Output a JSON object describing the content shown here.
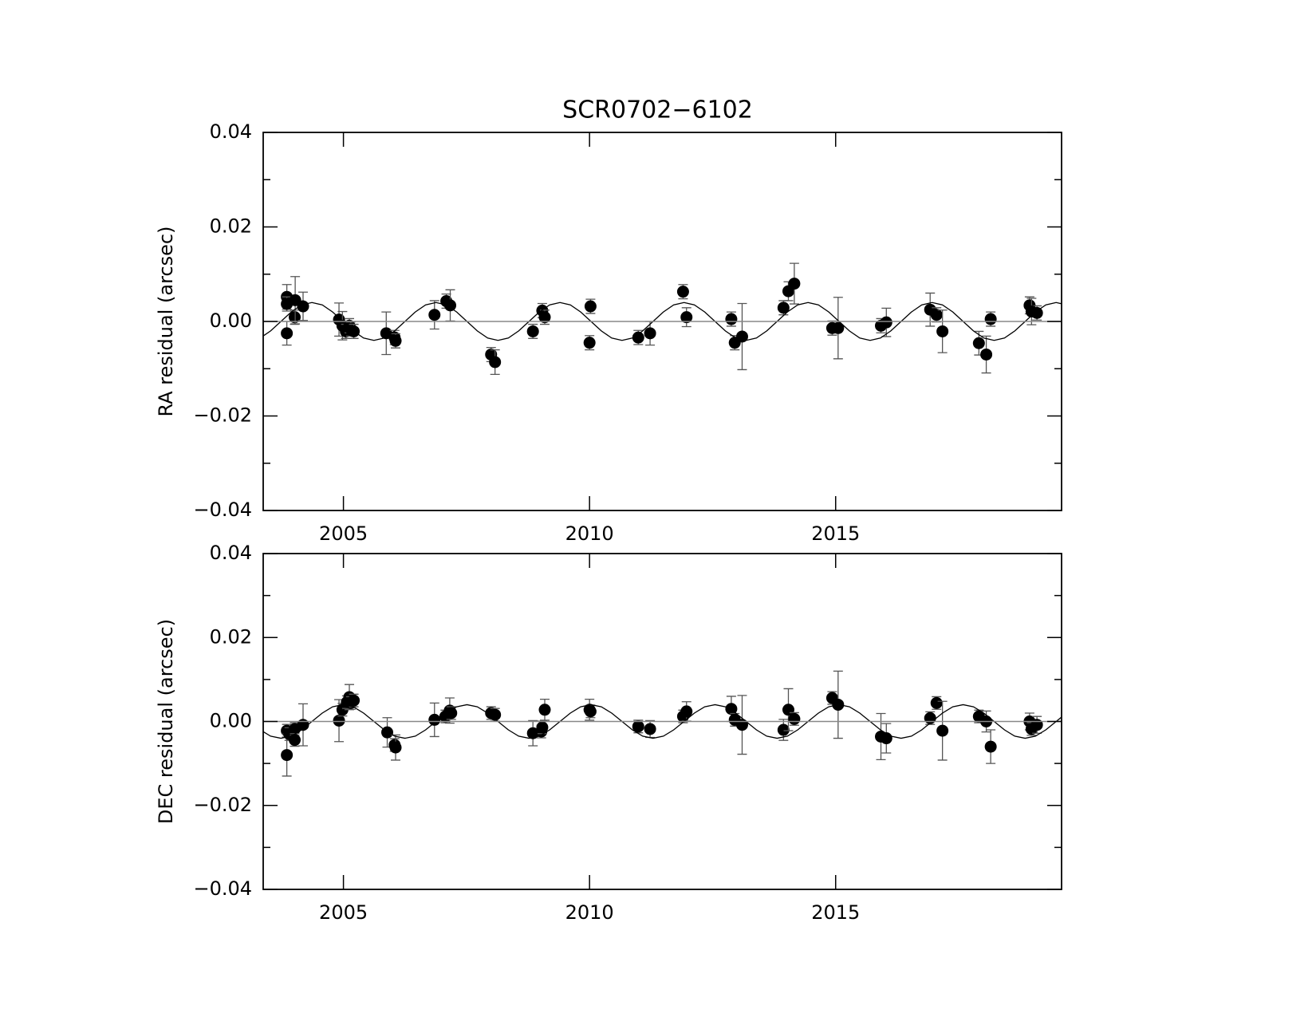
{
  "chart_data": [
    {
      "type": "scatter",
      "title": "SCR0702−6102",
      "y_label": "RA residual (arcsec)",
      "xlim": [
        2003.37,
        2019.59
      ],
      "ylim": [
        -0.04,
        0.04
      ],
      "xticks": [
        2005,
        2010,
        2015
      ],
      "yticks": [
        {
          "value": -0.04,
          "label": "−0.04"
        },
        {
          "value": -0.02,
          "label": "−0.02"
        },
        {
          "value": 0,
          "label": "0.00"
        },
        0.02,
        0.04
      ],
      "yminorticks": [
        -0.03,
        -0.01,
        0.01,
        0.03
      ],
      "hline": 0,
      "series": [
        {
          "type": "scatter",
          "color": "#000000",
          "error_color": "#555555",
          "x": [
            2003.85,
            2003.85,
            2003.85,
            2004.01,
            2004.02,
            2004.18,
            2004.91,
            2004.98,
            2005.05,
            2005.12,
            2005.15,
            2005.21,
            2005.87,
            2006.04,
            2006.06,
            2006.85,
            2007.09,
            2007.17,
            2008.0,
            2008.08,
            2008.85,
            2009.04,
            2009.09,
            2010.02,
            2010.0,
            2010.99,
            2011.23,
            2011.9,
            2011.97,
            2012.88,
            2012.95,
            2013.1,
            2013.94,
            2014.04,
            2014.16,
            2014.93,
            2015.05,
            2015.92,
            2016.03,
            2016.92,
            2017.05,
            2017.17,
            2017.91,
            2018.06,
            2018.15,
            2018.94,
            2019.09,
            2018.98
          ],
          "values": [
            0.0052,
            0.0037,
            -0.0025,
            0.0009,
            0.0045,
            0.0032,
            0.0004,
            -0.0009,
            -0.0021,
            -0.0009,
            -0.0016,
            -0.0021,
            -0.0025,
            -0.0034,
            -0.0041,
            0.0014,
            0.0043,
            0.0034,
            -0.007,
            -0.0086,
            -0.0021,
            0.0023,
            0.0009,
            0.0032,
            -0.0045,
            -0.0034,
            -0.0025,
            0.0063,
            0.0009,
            0.0005,
            -0.0045,
            -0.0032,
            0.0029,
            0.0064,
            0.008,
            -0.0014,
            -0.0014,
            -0.0009,
            -0.0002,
            0.0025,
            0.0014,
            -0.0021,
            -0.0046,
            -0.007,
            0.0005,
            0.0034,
            0.0018,
            0.0021
          ],
          "errors": [
            0.0026,
            0.0015,
            0.0025,
            0.0015,
            0.005,
            0.003,
            0.0035,
            0.003,
            0.0015,
            0.0015,
            0.0015,
            0.0015,
            0.0045,
            0.0015,
            0.0015,
            0.003,
            0.0015,
            0.0033,
            0.0015,
            0.0026,
            0.0015,
            0.0015,
            0.0015,
            0.0015,
            0.0015,
            0.0015,
            0.0025,
            0.0015,
            0.002,
            0.0015,
            0.0015,
            0.007,
            0.0015,
            0.002,
            0.0043,
            0.0015,
            0.0065,
            0.0015,
            0.003,
            0.0035,
            0.0015,
            0.0045,
            0.0025,
            0.0039,
            0.0015,
            0.0018,
            0.0015,
            0.0028
          ]
        },
        {
          "type": "line",
          "color": "#000000",
          "x": [
            2003.31,
            2003.52,
            2003.73,
            2003.94,
            2004.15,
            2004.36,
            2004.57,
            2004.78,
            2004.99,
            2005.2,
            2005.41,
            2005.62,
            2005.83,
            2006.04,
            2006.25,
            2006.46,
            2006.67,
            2006.88,
            2007.09,
            2007.3,
            2007.51,
            2007.72,
            2007.93,
            2008.14,
            2008.35,
            2008.56,
            2008.77,
            2008.98,
            2009.19,
            2009.4,
            2009.61,
            2009.82,
            2010.03,
            2010.24,
            2010.45,
            2010.66,
            2010.87,
            2011.08,
            2011.29,
            2011.5,
            2011.71,
            2011.92,
            2012.13,
            2012.34,
            2012.55,
            2012.76,
            2012.97,
            2013.18,
            2013.39,
            2013.6,
            2013.81,
            2014.02,
            2014.23,
            2014.44,
            2014.65,
            2014.86,
            2015.07,
            2015.28,
            2015.49,
            2015.7,
            2015.91,
            2016.12,
            2016.33,
            2016.54,
            2016.75,
            2016.96,
            2017.17,
            2017.38,
            2017.59,
            2017.8,
            2018.01,
            2018.22,
            2018.43,
            2018.64,
            2018.85,
            2019.06,
            2019.27,
            2019.48,
            2019.69
          ],
          "values": [
            -0.0035,
            -0.002,
            0,
            0.002,
            0.0035,
            0.004,
            0.0035,
            0.002,
            0,
            -0.002,
            -0.0035,
            -0.004,
            -0.0035,
            -0.002,
            0,
            0.002,
            0.0035,
            0.004,
            0.0035,
            0.002,
            0,
            -0.002,
            -0.0035,
            -0.004,
            -0.0035,
            -0.002,
            0,
            0.002,
            0.0035,
            0.004,
            0.0035,
            0.002,
            0,
            -0.002,
            -0.0035,
            -0.004,
            -0.0035,
            -0.002,
            0,
            0.002,
            0.0035,
            0.004,
            0.0035,
            0.002,
            0,
            -0.002,
            -0.0035,
            -0.004,
            -0.0035,
            -0.002,
            0,
            0.002,
            0.0035,
            0.004,
            0.0035,
            0.002,
            0,
            -0.002,
            -0.0035,
            -0.004,
            -0.0035,
            -0.002,
            0,
            0.002,
            0.0035,
            0.004,
            0.0035,
            0.002,
            0,
            -0.002,
            -0.0035,
            -0.004,
            -0.0035,
            -0.002,
            0,
            0.002,
            0.0035,
            0.004,
            0.0035
          ]
        }
      ]
    },
    {
      "type": "scatter",
      "y_label": "DEC residual (arcsec)",
      "xlim": [
        2003.37,
        2019.59
      ],
      "ylim": [
        -0.04,
        0.04
      ],
      "xticks": [
        2005,
        2010,
        2015
      ],
      "yticks": [
        {
          "value": -0.04,
          "label": "−0.04"
        },
        {
          "value": -0.02,
          "label": "−0.02"
        },
        {
          "value": 0,
          "label": "0.00"
        },
        0.02,
        0.04
      ],
      "yminorticks": [
        -0.03,
        -0.01,
        0.01,
        0.03
      ],
      "hline": 0,
      "series": [
        {
          "type": "scatter",
          "color": "#000000",
          "error_color": "#555555",
          "x": [
            2003.85,
            2003.85,
            2003.9,
            2004.01,
            2004.01,
            2004.18,
            2004.91,
            2004.98,
            2005.07,
            2005.12,
            2005.15,
            2005.21,
            2005.89,
            2006.04,
            2006.06,
            2006.85,
            2007.07,
            2007.16,
            2007.19,
            2008.0,
            2008.08,
            2008.85,
            2009.02,
            2009.04,
            2009.09,
            2010.0,
            2010.02,
            2010.99,
            2011.23,
            2011.9,
            2011.97,
            2012.88,
            2012.95,
            2013.1,
            2013.94,
            2014.04,
            2014.16,
            2014.93,
            2015.05,
            2015.92,
            2016.03,
            2016.92,
            2017.05,
            2017.17,
            2017.91,
            2018.06,
            2018.15,
            2018.94,
            2018.98,
            2019.09
          ],
          "values": [
            -0.0022,
            -0.008,
            -0.003,
            -0.0018,
            -0.0044,
            -0.0008,
            0.0002,
            0.0028,
            0.0046,
            0.0058,
            0.0044,
            0.005,
            -0.0026,
            -0.0056,
            -0.0062,
            0.0004,
            0.0012,
            0.0026,
            0.002,
            0.002,
            0.0016,
            -0.0028,
            -0.0024,
            -0.0014,
            0.0028,
            0.0028,
            0.0024,
            -0.0012,
            -0.0018,
            0.0012,
            0.0024,
            0.003,
            0.0004,
            -0.0008,
            -0.002,
            0.0028,
            0.0006,
            0.0056,
            0.004,
            -0.0036,
            -0.004,
            0.0008,
            0.0044,
            -0.0022,
            0.0012,
            0,
            -0.006,
            0,
            -0.0018,
            -0.0008
          ],
          "errors": [
            0.0015,
            0.005,
            0.0015,
            0.0015,
            0.0015,
            0.005,
            0.005,
            0.0015,
            0.0015,
            0.003,
            0.0015,
            0.0015,
            0.0035,
            0.0015,
            0.003,
            0.004,
            0.0015,
            0.003,
            0.0015,
            0.0015,
            0.0015,
            0.003,
            0.0015,
            0.0015,
            0.0025,
            0.0025,
            0.0015,
            0.0015,
            0.002,
            0.0015,
            0.0023,
            0.003,
            0.0015,
            0.007,
            0.0025,
            0.005,
            0.0015,
            0.0015,
            0.008,
            0.0055,
            0.0035,
            0.0015,
            0.0015,
            0.007,
            0.0015,
            0.0025,
            0.004,
            0.002,
            0.0015,
            0.002
          ]
        },
        {
          "type": "line",
          "color": "#000000",
          "x": [
            2003.31,
            2003.52,
            2003.73,
            2003.94,
            2004.15,
            2004.36,
            2004.57,
            2004.78,
            2004.99,
            2005.2,
            2005.41,
            2005.62,
            2005.83,
            2006.04,
            2006.25,
            2006.46,
            2006.67,
            2006.88,
            2007.09,
            2007.3,
            2007.51,
            2007.72,
            2007.93,
            2008.14,
            2008.35,
            2008.56,
            2008.77,
            2008.98,
            2009.19,
            2009.4,
            2009.61,
            2009.82,
            2010.03,
            2010.24,
            2010.45,
            2010.66,
            2010.87,
            2011.08,
            2011.29,
            2011.5,
            2011.71,
            2011.92,
            2012.13,
            2012.34,
            2012.55,
            2012.76,
            2012.97,
            2013.18,
            2013.39,
            2013.6,
            2013.81,
            2014.02,
            2014.23,
            2014.44,
            2014.65,
            2014.86,
            2015.07,
            2015.28,
            2015.49,
            2015.7,
            2015.91,
            2016.12,
            2016.33,
            2016.54,
            2016.75,
            2016.96,
            2017.17,
            2017.38,
            2017.59,
            2017.8,
            2018.01,
            2018.22,
            2018.43,
            2018.64,
            2018.85,
            2019.06,
            2019.27,
            2019.48,
            2019.69
          ],
          "values": [
            -0.002,
            -0.0035,
            -0.004,
            -0.0035,
            -0.002,
            0,
            0.002,
            0.0035,
            0.004,
            0.0035,
            0.002,
            0,
            -0.002,
            -0.0035,
            -0.004,
            -0.0035,
            -0.002,
            0,
            0.002,
            0.0035,
            0.004,
            0.0035,
            0.002,
            0,
            -0.002,
            -0.0035,
            -0.004,
            -0.0035,
            -0.002,
            0,
            0.002,
            0.0035,
            0.004,
            0.0035,
            0.002,
            0,
            -0.002,
            -0.0035,
            -0.004,
            -0.0035,
            -0.002,
            0,
            0.002,
            0.0035,
            0.004,
            0.0035,
            0.002,
            0,
            -0.002,
            -0.0035,
            -0.004,
            -0.0035,
            -0.002,
            0,
            0.002,
            0.0035,
            0.004,
            0.0035,
            0.002,
            0,
            -0.002,
            -0.0035,
            -0.004,
            -0.0035,
            -0.002,
            0,
            0.002,
            0.0035,
            0.004,
            0.0035,
            0.002,
            0,
            -0.002,
            -0.0035,
            -0.004,
            -0.0035,
            -0.002,
            0,
            0.002
          ]
        }
      ]
    }
  ]
}
